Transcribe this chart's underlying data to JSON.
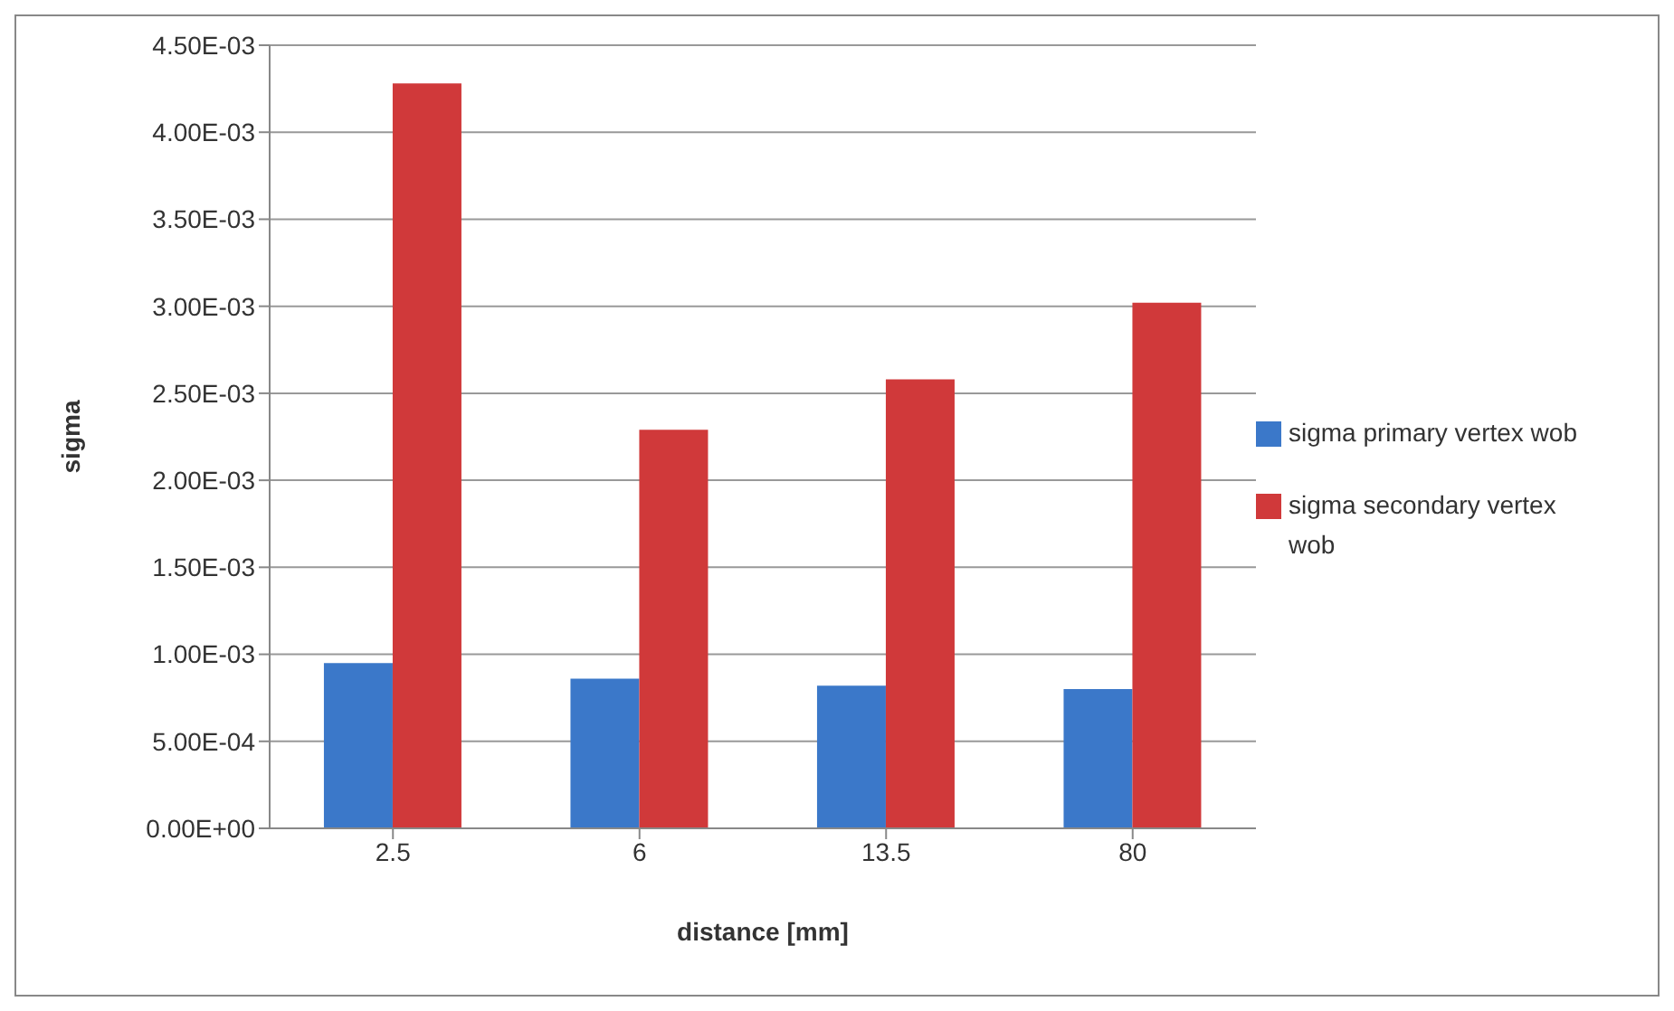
{
  "chart_data": {
    "type": "bar",
    "xlabel": "distance [mm]",
    "ylabel": "sigma",
    "categories": [
      "2.5",
      "6",
      "13.5",
      "80"
    ],
    "series": [
      {
        "name": "sigma primary vertex wob",
        "color": "#3b78c9",
        "values": [
          0.00095,
          0.00086,
          0.00082,
          0.0008
        ]
      },
      {
        "name": "sigma secondary vertex wob",
        "color": "#d0393a",
        "values": [
          0.00428,
          0.00229,
          0.00258,
          0.00302
        ]
      }
    ],
    "ylim": [
      0,
      0.0045
    ],
    "yticks": [
      {
        "value": 0,
        "label": "0.00E+00"
      },
      {
        "value": 0.0005,
        "label": "5.00E-04"
      },
      {
        "value": 0.001,
        "label": "1.00E-03"
      },
      {
        "value": 0.0015,
        "label": "1.50E-03"
      },
      {
        "value": 0.002,
        "label": "2.00E-03"
      },
      {
        "value": 0.0025,
        "label": "2.50E-03"
      },
      {
        "value": 0.003,
        "label": "3.00E-03"
      },
      {
        "value": 0.0035,
        "label": "3.50E-03"
      },
      {
        "value": 0.004,
        "label": "4.00E-03"
      },
      {
        "value": 0.0045,
        "label": "4.50E-03"
      }
    ],
    "grid": "y",
    "legend": "right"
  }
}
